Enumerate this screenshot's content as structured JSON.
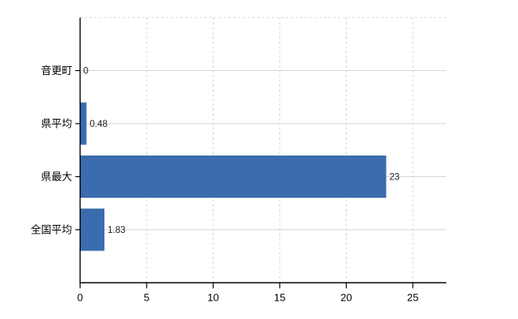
{
  "chart_data": {
    "type": "bar",
    "orientation": "horizontal",
    "title": "",
    "xlabel": "",
    "ylabel": "",
    "categories": [
      "音更町",
      "県平均",
      "県最大",
      "全国平均"
    ],
    "values": [
      0,
      0.48,
      23,
      1.83
    ],
    "value_labels": [
      "0",
      "0.48",
      "23",
      "1.83"
    ],
    "x_ticks": [
      0,
      5,
      10,
      15,
      20,
      25
    ],
    "x_tick_labels": [
      "0",
      "5",
      "10",
      "15",
      "20",
      "25"
    ],
    "xlim": [
      0,
      27.5
    ],
    "grid": true,
    "legend": false,
    "colors": {
      "bar": "#3B6CAE",
      "gridline": "#D6D6D6",
      "axis": "#000000",
      "tick_text": "#000000",
      "category_text": "#000000",
      "value_text": "#1A1A1A",
      "background": "#FFFFFF"
    }
  }
}
